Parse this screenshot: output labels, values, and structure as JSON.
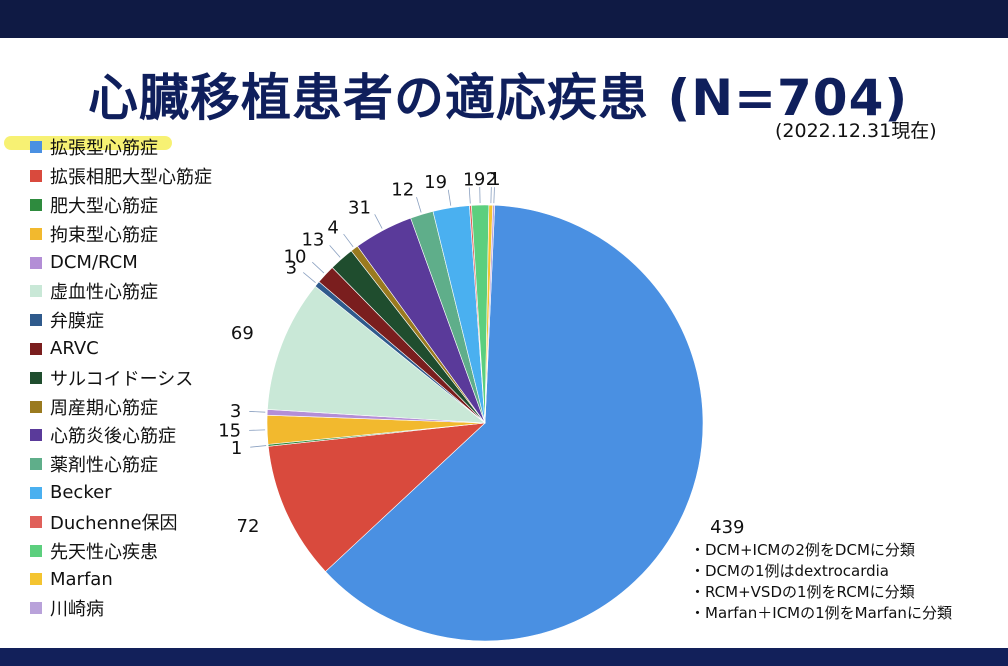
{
  "slide": {
    "title": "心臓移植患者の適応疾患 (N=704)",
    "subtitle": "(2022.12.31現在)"
  },
  "notes": [
    "・DCM+ICMの2例をDCMに分類",
    "・DCMの1例はdextrocardia",
    "・RCM+VSDの1例をRCMに分類",
    "・Marfan＋ICMの1例をMarfanに分類"
  ],
  "chart_data": {
    "type": "pie",
    "title": "心臓移植患者の適応疾患 (N=704)",
    "categories": [
      "拡張型心筋症",
      "拡張相肥大型心筋症",
      "肥大型心筋症",
      "拘束型心筋症",
      "DCM/RCM",
      "虚血性心筋症",
      "弁膜症",
      "ARVC",
      "サルコイドーシス",
      "周産期心筋症",
      "心筋炎後心筋症",
      "薬剤性心筋症",
      "Becker",
      "Duchenne保因",
      "先天性心疾患",
      "Marfan",
      "川崎病"
    ],
    "values": [
      439,
      72,
      1,
      15,
      3,
      69,
      3,
      10,
      13,
      4,
      31,
      12,
      19,
      1,
      9,
      2,
      1
    ],
    "colors": [
      "#4a90e2",
      "#d94a3d",
      "#2e8b3e",
      "#f2b92e",
      "#b38ed6",
      "#c9e8d7",
      "#2f5a8c",
      "#7a1e1e",
      "#1f4d2e",
      "#9a7a1f",
      "#5a3a9a",
      "#5fae8a",
      "#4ab0f0",
      "#e0605a",
      "#5ccf7e",
      "#f4c430",
      "#b9a2da"
    ],
    "labels": [
      "439",
      "72",
      "1",
      "15",
      "3",
      "69",
      "3",
      "10",
      "13",
      "4",
      "31",
      "12",
      "19",
      "1",
      "9",
      "2",
      "1"
    ],
    "legend": "left"
  }
}
